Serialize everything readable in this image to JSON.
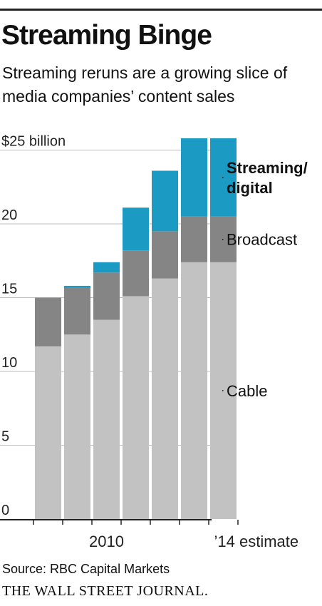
{
  "header": {
    "title": "Streaming Binge",
    "subtitle": "Streaming reruns are a growing slice of media companies’ content sales"
  },
  "colors": {
    "cable": "#c2c2c2",
    "broadcast": "#858585",
    "streaming": "#1b9ac3",
    "grid": "#bdbdbd",
    "axis": "#222222"
  },
  "chart_data": {
    "type": "bar",
    "stacked": true,
    "categories": [
      "2008",
      "2009",
      "2010",
      "2011",
      "2012",
      "2013",
      "2014"
    ],
    "series": [
      {
        "name": "Cable",
        "values": [
          11.7,
          12.5,
          13.5,
          15.1,
          16.3,
          17.4,
          17.4
        ]
      },
      {
        "name": "Broadcast",
        "values": [
          3.3,
          3.2,
          3.2,
          3.1,
          3.2,
          3.1,
          3.1
        ]
      },
      {
        "name": "Streaming/ digital",
        "values": [
          0.0,
          0.1,
          0.7,
          2.9,
          4.1,
          5.3,
          5.3
        ]
      }
    ],
    "ylim": [
      0,
      26
    ],
    "y_ticks": [
      {
        "value": 0,
        "label": "0"
      },
      {
        "value": 5,
        "label": "5"
      },
      {
        "value": 10,
        "label": "10"
      },
      {
        "value": 15,
        "label": "15"
      },
      {
        "value": 20,
        "label": "20"
      },
      {
        "value": 25,
        "label": "$25  billion"
      }
    ],
    "x_tick_labels": [
      {
        "category": "2010",
        "label": "2010"
      },
      {
        "category": "2014",
        "label": "’14 estimate"
      }
    ],
    "legend_placement": "right, inline labels",
    "grid": true
  },
  "footer": {
    "source": "Source: RBC Capital Markets",
    "publisher": "THE WALL STREET JOURNAL."
  }
}
